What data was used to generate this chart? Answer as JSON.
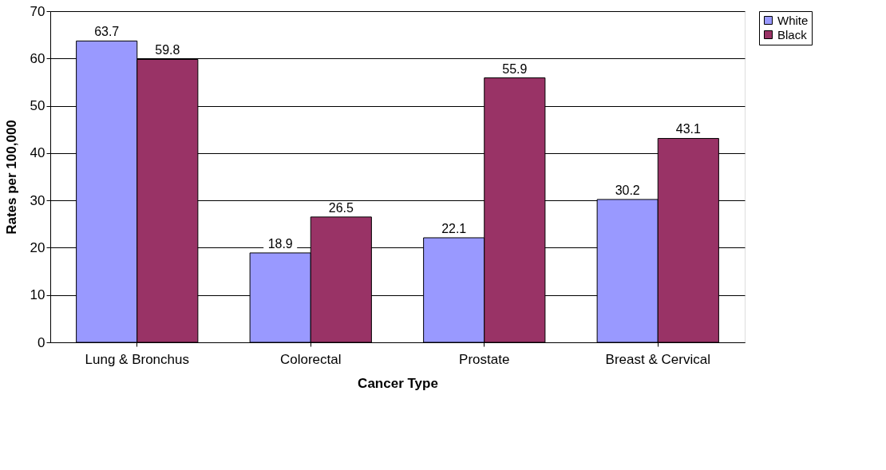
{
  "chart_data": {
    "type": "bar",
    "xlabel": "Cancer Type",
    "ylabel": "Rates per 100,000",
    "categories": [
      "Lung & Bronchus",
      "Colorectal",
      "Prostate",
      "Breast & Cervical"
    ],
    "series": [
      {
        "name": "White",
        "color": "#9999ff",
        "values": [
          63.7,
          18.9,
          22.1,
          30.2
        ]
      },
      {
        "name": "Black",
        "color": "#993366",
        "values": [
          59.8,
          26.5,
          55.9,
          43.1
        ]
      }
    ],
    "ylim": [
      0,
      70
    ],
    "yticks": [
      0,
      10,
      20,
      30,
      40,
      50,
      60,
      70
    ],
    "grid": "y",
    "legend": "right",
    "data_labels": true
  }
}
